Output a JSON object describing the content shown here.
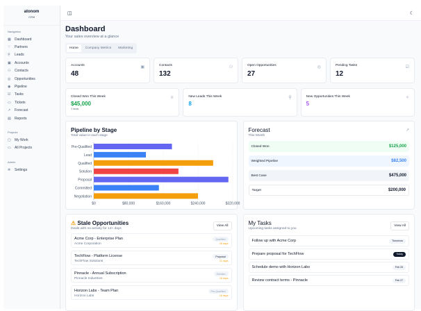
{
  "brand": {
    "name": "atonom",
    "sub": "CRM"
  },
  "sidebar": {
    "groups": [
      {
        "label": "Navigation",
        "items": [
          {
            "label": "Dashboard",
            "icon": "grid-icon"
          },
          {
            "label": "Partners",
            "icon": "handshake-icon"
          },
          {
            "label": "Leads",
            "icon": "user-plus-icon"
          },
          {
            "label": "Accounts",
            "icon": "building-icon"
          },
          {
            "label": "Contacts",
            "icon": "users-icon"
          },
          {
            "label": "Opportunities",
            "icon": "target-icon"
          },
          {
            "label": "Pipeline",
            "icon": "pipeline-icon"
          },
          {
            "label": "Tasks",
            "icon": "checkbox-icon"
          },
          {
            "label": "Tickets",
            "icon": "ticket-icon"
          },
          {
            "label": "Forecast",
            "icon": "trend-icon"
          },
          {
            "label": "Reports",
            "icon": "file-icon"
          }
        ]
      },
      {
        "label": "Projects",
        "items": [
          {
            "label": "My Work",
            "icon": "briefcase-icon"
          },
          {
            "label": "All Projects",
            "icon": "folder-icon"
          }
        ]
      },
      {
        "label": "Admin",
        "items": [
          {
            "label": "Settings",
            "icon": "gear-icon"
          }
        ]
      }
    ]
  },
  "header": {
    "title": "Dashboard",
    "subtitle": "Your sales overview at a glance"
  },
  "tabs": [
    {
      "label": "Home",
      "active": true
    },
    {
      "label": "Company Metrics"
    },
    {
      "label": "Marketing"
    }
  ],
  "stats": [
    {
      "label": "Accounts",
      "value": "48",
      "icon": "building-icon"
    },
    {
      "label": "Contacts",
      "value": "132",
      "icon": "users-icon"
    },
    {
      "label": "Open Opportunities",
      "value": "27",
      "icon": "target-icon"
    },
    {
      "label": "Pending Tasks",
      "value": "12",
      "icon": "checkbox-icon"
    }
  ],
  "weekly": [
    {
      "label": "Closed Won This Week",
      "value": "$45,000",
      "note": "3 deals",
      "color": "#16a34a",
      "icon": "trophy-icon"
    },
    {
      "label": "New Leads This Week",
      "value": "8",
      "color": "#0ea5e9",
      "icon": "user-plus-icon"
    },
    {
      "label": "New Opportunities This Week",
      "value": "5",
      "color": "#a855f7",
      "icon": "sparkle-icon"
    }
  ],
  "pipeline": {
    "title": "Pipeline by Stage",
    "subtitle": "Total value in each stage"
  },
  "chart_data": {
    "type": "bar",
    "orientation": "horizontal",
    "categories": [
      "Pre-Qualified",
      "Lead",
      "Qualified",
      "Solution",
      "Proposal",
      "Committed",
      "Negotiation"
    ],
    "values": [
      180000,
      120000,
      275000,
      195000,
      310000,
      150000,
      240000
    ],
    "colors": [
      "#6366f1",
      "#3b82f6",
      "#f59e0b",
      "#ef4444",
      "#6366f1",
      "#3b82f6",
      "#f59e0b"
    ],
    "xlim": [
      0,
      320000
    ],
    "xticks": [
      "$0",
      "$80,000",
      "$160,000",
      "$240,000",
      "$320,000"
    ],
    "grid": true
  },
  "forecast": {
    "title": "Forecast",
    "subtitle": "This Month",
    "rows": [
      {
        "label": "Closed Won",
        "value": "$125,000",
        "bg": "#f0fdf4",
        "color": "#16a34a"
      },
      {
        "label": "Weighted Pipeline",
        "value": "$82,500",
        "bg": "#eff6ff",
        "color": "#3b82f6"
      },
      {
        "label": "Best Case",
        "value": "$475,000",
        "bg": "#f1f5f9",
        "color": "#0f172a"
      },
      {
        "label": "Target",
        "value": "$200,000",
        "bg": "#ffffff",
        "color": "#0f172a"
      }
    ]
  },
  "stale": {
    "title": "Stale Opportunities",
    "subtitle": "Deals with no activity for 14+ days",
    "view_all": "View All",
    "items": [
      {
        "name": "Acme Corp - Enterprise Plan",
        "company": "Acme Corporation",
        "stage": "Qualified",
        "days": "28 days"
      },
      {
        "name": "TechFlow - Platform License",
        "company": "TechFlow Solutions",
        "stage": "Proposal",
        "days": "21 days"
      },
      {
        "name": "Pinnacle - Annual Subscription",
        "company": "Pinnacle Industries",
        "stage": "Solution",
        "days": "18 days"
      },
      {
        "name": "Horizon Labs - Team Plan",
        "company": "Horizon Labs",
        "stage": "Pre-Qualified",
        "days": "16 days"
      }
    ]
  },
  "tasks": {
    "title": "My Tasks",
    "subtitle": "Upcoming tasks assigned to you",
    "view_all": "View All",
    "items": [
      {
        "name": "Follow up with Acme Corp",
        "due": "Tomorrow"
      },
      {
        "name": "Prepare proposal for TechFlow",
        "due": "Today"
      },
      {
        "name": "Schedule demo with Horizon Labs",
        "due": "Feb 25"
      },
      {
        "name": "Review contract terms - Pinnacle",
        "due": "Feb 27"
      }
    ]
  }
}
